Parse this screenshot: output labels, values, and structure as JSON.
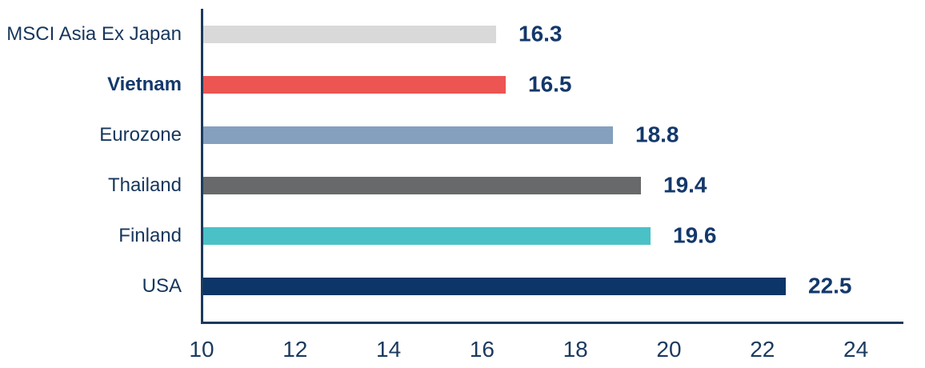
{
  "chart_data": {
    "type": "bar",
    "orientation": "horizontal",
    "title": "",
    "xlabel": "",
    "ylabel": "",
    "categories": [
      "MSCI Asia Ex Japan",
      "Vietnam",
      "Eurozone",
      "Thailand",
      "Finland",
      "USA"
    ],
    "values": [
      16.3,
      16.5,
      18.8,
      19.4,
      19.6,
      22.5
    ],
    "value_labels": [
      "16.3",
      "16.5",
      "18.8",
      "19.4",
      "19.6",
      "22.5"
    ],
    "bar_colors": [
      "#d9d9d9",
      "#ec5552",
      "#84a0be",
      "#67696b",
      "#4ac1c7",
      "#0b3667"
    ],
    "highlighted_category": "Vietnam",
    "x_ticks": [
      "10",
      "12",
      "14",
      "16",
      "18",
      "20",
      "22",
      "24"
    ],
    "x_tick_values": [
      10,
      12,
      14,
      16,
      18,
      20,
      22,
      24
    ],
    "xlim": [
      10,
      25
    ],
    "grid": false,
    "legend": false,
    "colors": {
      "axis": "#1b3a5e",
      "category_text": "#16365c",
      "value_text": "#14386b",
      "background": "#ffffff"
    }
  }
}
